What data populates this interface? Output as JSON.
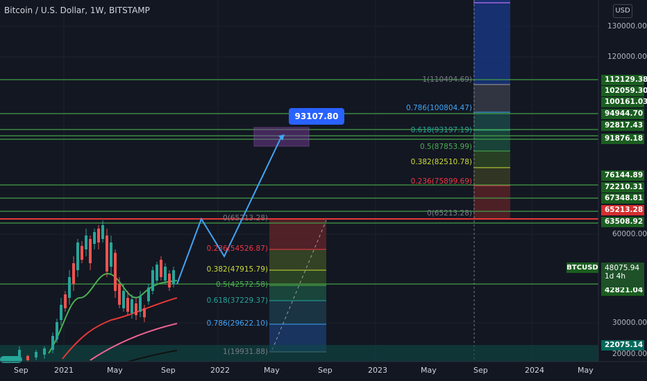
{
  "header": {
    "title": "Bitcoin / U.S. Dollar, 1W, BITSTAMP",
    "currency_button": "USD"
  },
  "price_axis": {
    "labels": [
      "130000.00",
      "120000.00",
      "60000.00",
      "30000.00",
      "20000.00"
    ]
  },
  "level_badges": [
    {
      "label": "112129.38",
      "color": "#1b5e20"
    },
    {
      "label": "102059.30",
      "color": "#1b5e20"
    },
    {
      "label": "100161.03",
      "color": "#1b5e20"
    },
    {
      "label": "94944.70",
      "color": "#1b5e20"
    },
    {
      "label": "92817.43",
      "color": "#1b5e20"
    },
    {
      "label": "91876.18",
      "color": "#1b5e20"
    },
    {
      "label": "76144.89",
      "color": "#1b5e20"
    },
    {
      "label": "72210.31",
      "color": "#1b5e20"
    },
    {
      "label": "67348.81",
      "color": "#1b5e20"
    },
    {
      "label": "65213.28",
      "color": "#d32f2f"
    },
    {
      "label": "63508.92",
      "color": "#1b5e20"
    },
    {
      "label": "42821.04",
      "color": "#1b5e20"
    },
    {
      "label": "22075.14",
      "color": "#00695c"
    }
  ],
  "current_price": {
    "symbol": "BTCUSD",
    "price": "48075.94",
    "countdown": "1d 4h"
  },
  "time_axis": [
    "Sep",
    "2021",
    "May",
    "Sep",
    "2022",
    "May",
    "Sep",
    "2023",
    "May",
    "Sep",
    "2024",
    "May"
  ],
  "target_label": "93107.80",
  "fib_lower": [
    {
      "text": "0(65213.28)",
      "color": "#787b86"
    },
    {
      "text": "0.236(54526.87)",
      "color": "#f23645"
    },
    {
      "text": "0.382(47915.79)",
      "color": "#cddc39"
    },
    {
      "text": "0.5(42572.58)",
      "color": "#4caf50"
    },
    {
      "text": "0.618(37229.37)",
      "color": "#26a69a"
    },
    {
      "text": "0.786(29622.10)",
      "color": "#42a5f5"
    },
    {
      "text": "1(19931.88)",
      "color": "#787b86"
    }
  ],
  "fib_upper": [
    {
      "text": "1(110494.69)",
      "color": "#787b86"
    },
    {
      "text": "0.786(100804.47)",
      "color": "#42a5f5"
    },
    {
      "text": "0.618(93197.19)",
      "color": "#26a69a"
    },
    {
      "text": "0.5(87853.99)",
      "color": "#4caf50"
    },
    {
      "text": "0.382(82510.78)",
      "color": "#cddc39"
    },
    {
      "text": "0.236(75899.69)",
      "color": "#f23645"
    },
    {
      "text": "0(65213.28)",
      "color": "#787b86"
    }
  ]
}
